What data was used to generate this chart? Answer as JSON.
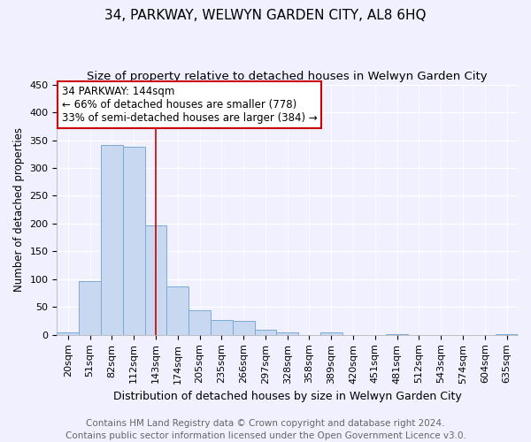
{
  "title": "34, PARKWAY, WELWYN GARDEN CITY, AL8 6HQ",
  "subtitle": "Size of property relative to detached houses in Welwyn Garden City",
  "xlabel": "Distribution of detached houses by size in Welwyn Garden City",
  "ylabel": "Number of detached properties",
  "footer_line1": "Contains HM Land Registry data © Crown copyright and database right 2024.",
  "footer_line2": "Contains public sector information licensed under the Open Government Licence v3.0.",
  "bar_labels": [
    "20sqm",
    "51sqm",
    "82sqm",
    "112sqm",
    "143sqm",
    "174sqm",
    "205sqm",
    "235sqm",
    "266sqm",
    "297sqm",
    "328sqm",
    "358sqm",
    "389sqm",
    "420sqm",
    "451sqm",
    "481sqm",
    "512sqm",
    "543sqm",
    "574sqm",
    "604sqm",
    "635sqm"
  ],
  "bar_values": [
    5,
    97,
    341,
    338,
    197,
    87,
    44,
    26,
    25,
    10,
    5,
    0,
    5,
    0,
    0,
    2,
    0,
    0,
    0,
    0,
    2
  ],
  "bar_color": "#c8d8f0",
  "bar_edge_color": "#7aaad4",
  "annotation_box_line1": "34 PARKWAY: 144sqm",
  "annotation_box_line2": "← 66% of detached houses are smaller (778)",
  "annotation_box_line3": "33% of semi-detached houses are larger (384) →",
  "annotation_box_color": "white",
  "annotation_box_edge_color": "#cc0000",
  "property_bar_index": 4,
  "property_line_color": "#cc0000",
  "ylim": [
    0,
    450
  ],
  "yticks": [
    0,
    50,
    100,
    150,
    200,
    250,
    300,
    350,
    400,
    450
  ],
  "background_color": "#f0f0ff",
  "grid_color": "white",
  "title_fontsize": 11,
  "subtitle_fontsize": 9.5,
  "xlabel_fontsize": 9,
  "ylabel_fontsize": 8.5,
  "tick_fontsize": 8,
  "footer_fontsize": 7.5,
  "annotation_fontsize": 8.5
}
